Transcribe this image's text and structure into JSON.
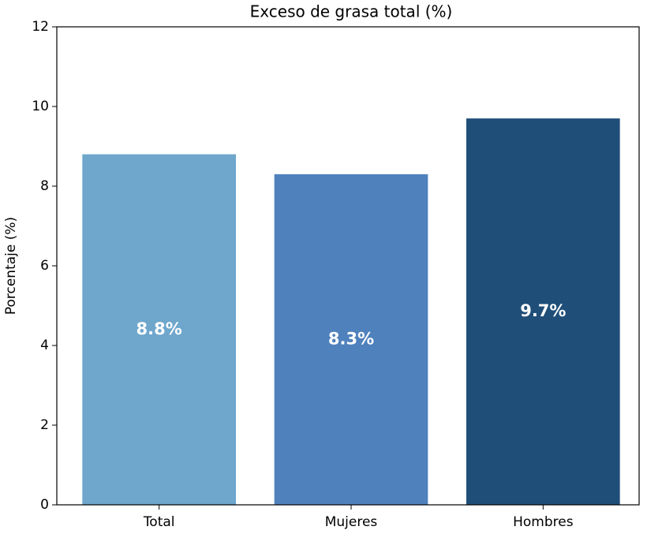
{
  "chart_data": {
    "type": "bar",
    "title": "Exceso de grasa total (%)",
    "ylabel": "Porcentaje (%)",
    "categories": [
      "Total",
      "Mujeres",
      "Hombres"
    ],
    "values": [
      8.8,
      8.3,
      9.7
    ],
    "value_labels": [
      "8.8%",
      "8.3%",
      "9.7%"
    ],
    "colors": [
      "#6ea6cc",
      "#4f81bd",
      "#1f4e79"
    ],
    "ylim": [
      0,
      12
    ],
    "yticks": [
      0,
      2,
      4,
      6,
      8,
      10,
      12
    ]
  }
}
